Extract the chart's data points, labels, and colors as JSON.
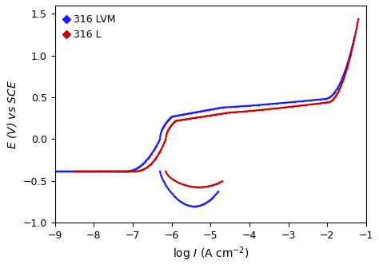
{
  "xlabel": "log $I$ (A cm$^{-2}$)",
  "ylabel": "$E$ (V) vs SCE",
  "xlim": [
    -9,
    -1
  ],
  "ylim": [
    -1,
    1.6
  ],
  "yticks": [
    -1,
    -0.5,
    0,
    0.5,
    1,
    1.5
  ],
  "xticks": [
    -9,
    -8,
    -7,
    -6,
    -5,
    -4,
    -3,
    -2,
    -1
  ],
  "legend_316LVM": "316 LVM",
  "legend_316L": "316 L",
  "color_316LVM": "#1a1aff",
  "color_316L": "#cc0000",
  "lw": 1.5
}
